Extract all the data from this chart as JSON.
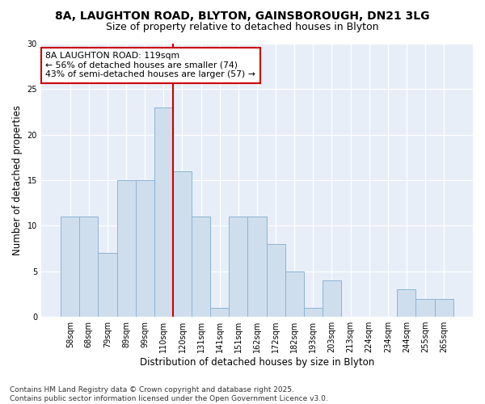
{
  "title1": "8A, LAUGHTON ROAD, BLYTON, GAINSBOROUGH, DN21 3LG",
  "title2": "Size of property relative to detached houses in Blyton",
  "xlabel": "Distribution of detached houses by size in Blyton",
  "ylabel": "Number of detached properties",
  "categories": [
    "58sqm",
    "68sqm",
    "79sqm",
    "89sqm",
    "99sqm",
    "110sqm",
    "120sqm",
    "131sqm",
    "141sqm",
    "151sqm",
    "162sqm",
    "172sqm",
    "182sqm",
    "193sqm",
    "203sqm",
    "213sqm",
    "224sqm",
    "234sqm",
    "244sqm",
    "255sqm",
    "265sqm"
  ],
  "values": [
    11,
    11,
    7,
    15,
    15,
    23,
    16,
    11,
    1,
    11,
    11,
    8,
    5,
    1,
    4,
    0,
    0,
    0,
    3,
    2,
    2
  ],
  "bar_color": "#cfdeed",
  "bar_edge_color": "#8ab4d4",
  "vline_x": 6,
  "vline_color": "#cc0000",
  "annotation_box_text": "8A LAUGHTON ROAD: 119sqm\n← 56% of detached houses are smaller (74)\n43% of semi-detached houses are larger (57) →",
  "annotation_box_edge_color": "#cc0000",
  "footnote": "Contains HM Land Registry data © Crown copyright and database right 2025.\nContains public sector information licensed under the Open Government Licence v3.0.",
  "ylim": [
    0,
    30
  ],
  "yticks": [
    0,
    5,
    10,
    15,
    20,
    25,
    30
  ],
  "bg_color": "#ffffff",
  "plot_bg_color": "#e8eef8"
}
